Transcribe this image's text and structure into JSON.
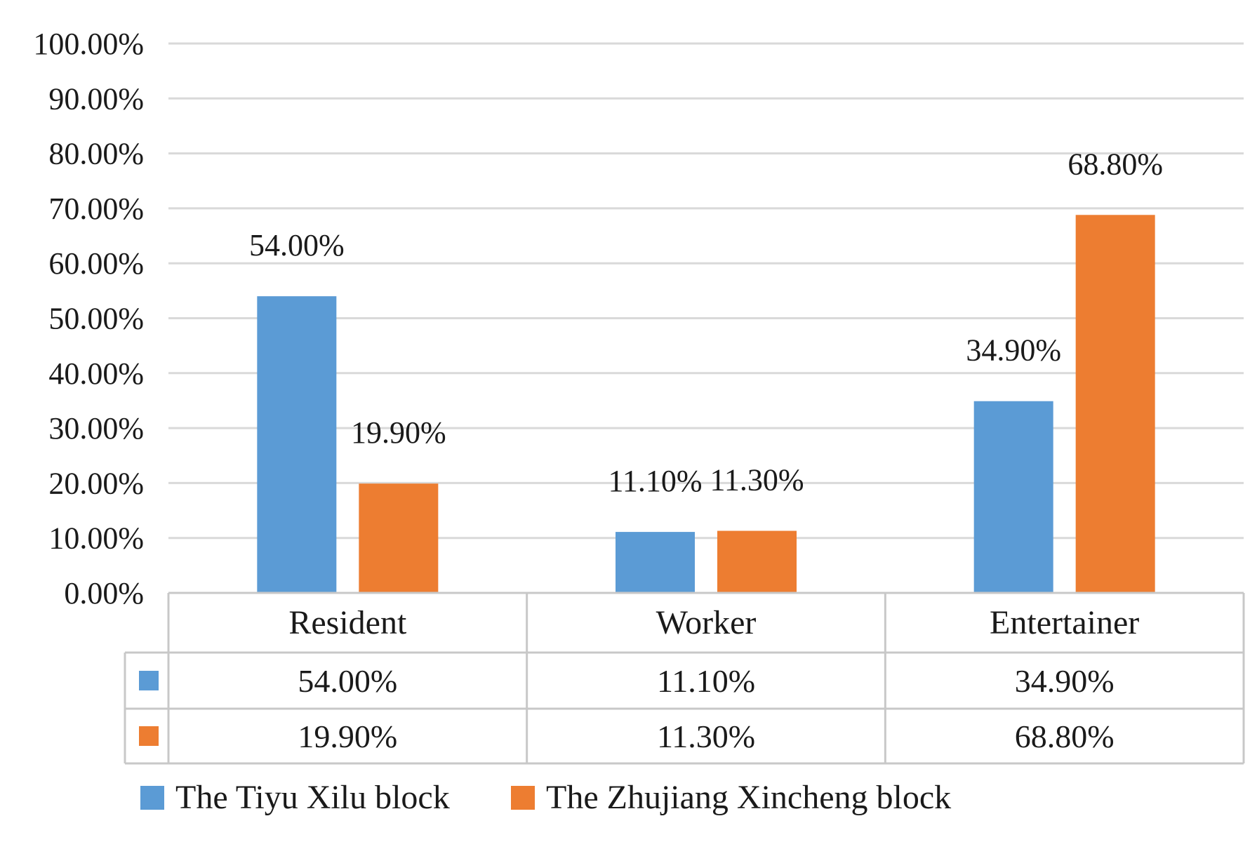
{
  "chart_data": {
    "type": "bar",
    "categories": [
      "Resident",
      "Worker",
      "Entertainer"
    ],
    "series": [
      {
        "name": "The Tiyu Xilu block",
        "values": [
          54.0,
          11.1,
          34.9
        ],
        "labels": [
          "54.00%",
          "11.10%",
          "34.90%"
        ]
      },
      {
        "name": "The Zhujiang Xincheng block",
        "values": [
          19.9,
          11.3,
          68.8
        ],
        "labels": [
          "19.90%",
          "11.30%",
          "68.80%"
        ]
      }
    ],
    "ylim": [
      0,
      100
    ],
    "yticks": [
      "0.00%",
      "10.00%",
      "20.00%",
      "30.00%",
      "40.00%",
      "50.00%",
      "60.00%",
      "70.00%",
      "80.00%",
      "90.00%",
      "100.00%"
    ],
    "grid": true,
    "data_table": true,
    "legend_position": "bottom"
  },
  "colors": {
    "series": [
      "#5b9bd5",
      "#ed7d31"
    ],
    "grid": "#d9d9d9",
    "table_border": "#c8c8c8"
  }
}
